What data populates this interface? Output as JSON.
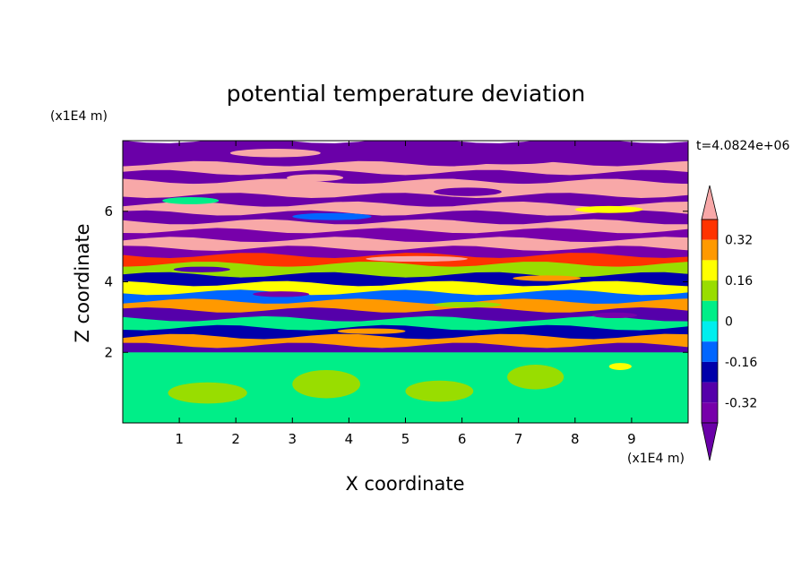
{
  "chart_data": {
    "type": "heatmap",
    "title": "potential temperature deviation",
    "xlabel": "X coordinate",
    "ylabel": "Z coordinate",
    "x_unit": "(x1E4 m)",
    "y_unit": "(x1E4 m)",
    "time_label": "t=4.0824e+06",
    "xlim": [
      0,
      10
    ],
    "ylim": [
      0,
      8
    ],
    "x_ticks": [
      1,
      2,
      3,
      4,
      5,
      6,
      7,
      8,
      9
    ],
    "y_ticks": [
      2,
      4,
      6
    ],
    "colorbar": {
      "levels": [
        -0.4,
        -0.32,
        -0.24,
        -0.16,
        -0.08,
        0,
        0.08,
        0.16,
        0.24,
        0.32,
        0.4
      ],
      "tick_labels": [
        "0.32",
        "0.16",
        "0",
        "-0.16",
        "-0.32"
      ],
      "tick_values": [
        0.32,
        0.16,
        0,
        -0.16,
        -0.32
      ],
      "colors": [
        "#ff3300",
        "#ff9900",
        "#ffff00",
        "#99dd00",
        "#00ee88",
        "#00eeee",
        "#0066ff",
        "#0000aa",
        "#5500aa",
        "#7700aa"
      ],
      "over_color": "#f8a8a8",
      "under_color": "#6a00a8"
    },
    "bands": [
      {
        "z_from": 7.35,
        "z_to": 8.0,
        "value": -0.45
      },
      {
        "z_from": 7.1,
        "z_to": 7.35,
        "value": 0.45
      },
      {
        "z_from": 6.85,
        "z_to": 7.1,
        "value": -0.45
      },
      {
        "z_from": 6.45,
        "z_to": 6.85,
        "value": 0.45
      },
      {
        "z_from": 6.2,
        "z_to": 6.45,
        "value": -0.45
      },
      {
        "z_from": 5.95,
        "z_to": 6.2,
        "value": 0.45
      },
      {
        "z_from": 5.7,
        "z_to": 5.95,
        "value": -0.45
      },
      {
        "z_from": 5.45,
        "z_to": 5.7,
        "value": 0.45
      },
      {
        "z_from": 5.2,
        "z_to": 5.45,
        "value": -0.38
      },
      {
        "z_from": 4.95,
        "z_to": 5.2,
        "value": 0.45
      },
      {
        "z_from": 4.75,
        "z_to": 4.95,
        "value": -0.36
      },
      {
        "z_from": 4.5,
        "z_to": 4.75,
        "value": 0.36
      },
      {
        "z_from": 4.2,
        "z_to": 4.5,
        "value": 0.1
      },
      {
        "z_from": 3.95,
        "z_to": 4.2,
        "value": -0.2
      },
      {
        "z_from": 3.7,
        "z_to": 3.95,
        "value": 0.2
      },
      {
        "z_from": 3.45,
        "z_to": 3.7,
        "value": -0.12
      },
      {
        "z_from": 3.2,
        "z_to": 3.45,
        "value": 0.28
      },
      {
        "z_from": 2.95,
        "z_to": 3.2,
        "value": -0.28
      },
      {
        "z_from": 2.7,
        "z_to": 2.95,
        "value": 0.05
      },
      {
        "z_from": 2.45,
        "z_to": 2.7,
        "value": -0.2
      },
      {
        "z_from": 2.2,
        "z_to": 2.45,
        "value": 0.3
      },
      {
        "z_from": 2.0,
        "z_to": 2.2,
        "value": -0.3
      },
      {
        "z_from": 0.0,
        "z_to": 2.0,
        "value": 0.02
      }
    ],
    "features": [
      {
        "x": 2.7,
        "z": 7.65,
        "rx": 0.8,
        "rz": 0.12,
        "value": 0.45
      },
      {
        "x": 6.8,
        "z": 7.45,
        "rx": 0.9,
        "rz": 0.12,
        "value": -0.45
      },
      {
        "x": 3.4,
        "z": 6.95,
        "rx": 0.5,
        "rz": 0.1,
        "value": 0.45
      },
      {
        "x": 6.1,
        "z": 6.55,
        "rx": 0.6,
        "rz": 0.12,
        "value": -0.45
      },
      {
        "x": 1.2,
        "z": 6.3,
        "rx": 0.5,
        "rz": 0.1,
        "value": 0.0
      },
      {
        "x": 8.6,
        "z": 6.05,
        "rx": 0.6,
        "rz": 0.1,
        "value": 0.2
      },
      {
        "x": 3.7,
        "z": 5.85,
        "rx": 0.7,
        "rz": 0.1,
        "value": -0.1
      },
      {
        "x": 5.2,
        "z": 4.65,
        "rx": 0.9,
        "rz": 0.08,
        "value": 0.45
      },
      {
        "x": 1.4,
        "z": 4.35,
        "rx": 0.5,
        "rz": 0.08,
        "value": -0.3
      },
      {
        "x": 7.5,
        "z": 4.1,
        "rx": 0.6,
        "rz": 0.08,
        "value": 0.3
      },
      {
        "x": 2.8,
        "z": 3.65,
        "rx": 0.5,
        "rz": 0.08,
        "value": -0.35
      },
      {
        "x": 6.1,
        "z": 3.35,
        "rx": 0.6,
        "rz": 0.08,
        "value": 0.15
      },
      {
        "x": 8.7,
        "z": 3.05,
        "rx": 0.4,
        "rz": 0.08,
        "value": -0.35
      },
      {
        "x": 4.4,
        "z": 2.6,
        "rx": 0.6,
        "rz": 0.08,
        "value": 0.25
      },
      {
        "x": 1.5,
        "z": 0.85,
        "rx": 0.7,
        "rz": 0.3,
        "value": 0.1
      },
      {
        "x": 3.6,
        "z": 1.1,
        "rx": 0.6,
        "rz": 0.4,
        "value": 0.1
      },
      {
        "x": 5.6,
        "z": 0.9,
        "rx": 0.6,
        "rz": 0.3,
        "value": 0.1
      },
      {
        "x": 7.3,
        "z": 1.3,
        "rx": 0.5,
        "rz": 0.35,
        "value": 0.1
      },
      {
        "x": 8.8,
        "z": 1.6,
        "rx": 0.2,
        "rz": 0.1,
        "value": 0.2
      },
      {
        "x": 2.5,
        "z": 1.5,
        "rx": 0.3,
        "rz": 0.2,
        "value": 0.0
      },
      {
        "x": 6.4,
        "z": 0.4,
        "rx": 0.5,
        "rz": 0.2,
        "value": 0.0
      }
    ]
  }
}
